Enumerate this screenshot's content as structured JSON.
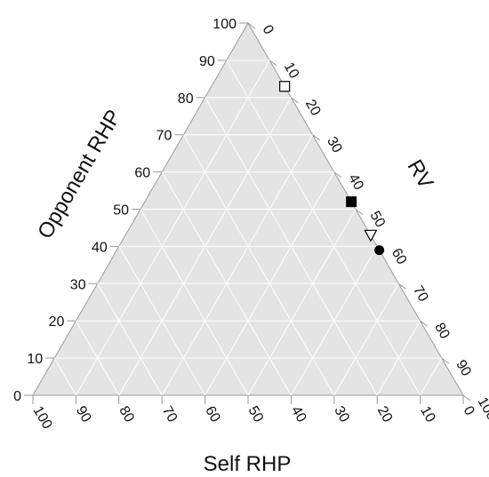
{
  "chart_data": {
    "type": "ternary",
    "axes": {
      "left": {
        "label": "Opponent RHP"
      },
      "right": {
        "label": "RV"
      },
      "bottom": {
        "label": "Self RHP"
      }
    },
    "ticks": [
      0,
      10,
      20,
      30,
      40,
      50,
      60,
      70,
      80,
      90,
      100
    ],
    "range": [
      0,
      100
    ],
    "grid": true,
    "background": "#e4e4e4",
    "series": [
      {
        "marker": "open-square",
        "points": [
          {
            "opponent_rhp": 83,
            "rv": 17,
            "self_rhp": 0
          }
        ]
      },
      {
        "marker": "filled-square",
        "points": [
          {
            "opponent_rhp": 52,
            "rv": 48,
            "self_rhp": 0
          }
        ]
      },
      {
        "marker": "open-triangle-down",
        "points": [
          {
            "opponent_rhp": 43,
            "rv": 57,
            "self_rhp": 0
          }
        ]
      },
      {
        "marker": "filled-circle",
        "points": [
          {
            "opponent_rhp": 39,
            "rv": 61,
            "self_rhp": 0
          }
        ]
      }
    ]
  }
}
